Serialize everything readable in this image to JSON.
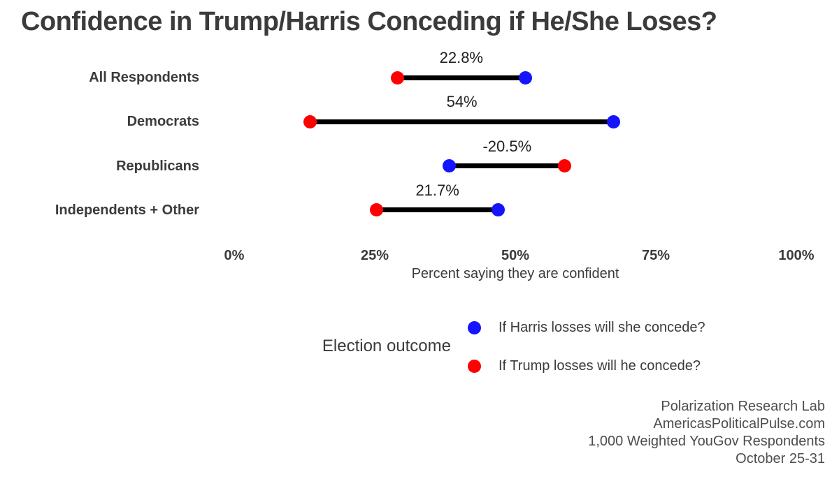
{
  "title": "Confidence in Trump/Harris Conceding if He/She Loses?",
  "chart_data": {
    "type": "dumbbell",
    "categories": [
      "All Respondents",
      "Democrats",
      "Republicans",
      "Independents + Other"
    ],
    "series": [
      {
        "name": "If Harris losses will she concede?",
        "color": "#1414ff",
        "values": [
          51.8,
          67.5,
          38.3,
          47.0
        ]
      },
      {
        "name": "If Trump losses will he concede?",
        "color": "#ff0000",
        "values": [
          29.0,
          13.5,
          58.8,
          25.3
        ]
      }
    ],
    "diff_labels": [
      "22.8%",
      "54%",
      "-20.5%",
      "21.7%"
    ],
    "xlabel": "Percent saying they are confident",
    "x_ticks": [
      "0%",
      "25%",
      "50%",
      "75%",
      "100%"
    ],
    "x_tick_values": [
      0,
      25,
      50,
      75,
      100
    ],
    "xlim": [
      0,
      100
    ],
    "grid": false,
    "legend_title": "Election outcome",
    "legend_position": "bottom",
    "connector_color": "#000000"
  },
  "footer": {
    "lines": [
      "Polarization Research Lab",
      "AmericasPoliticalPulse.com",
      "1,000 Weighted YouGov Respondents",
      "October 25-31"
    ]
  }
}
